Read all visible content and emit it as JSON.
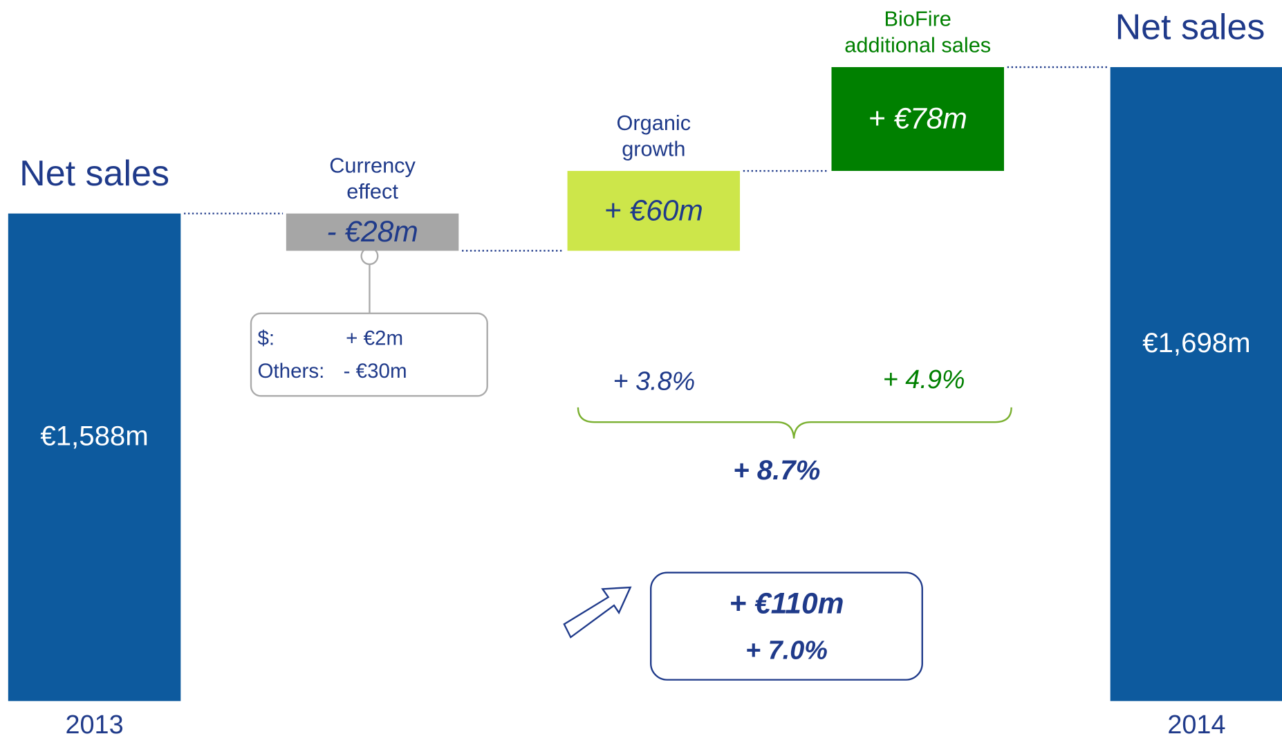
{
  "chart_data": {
    "type": "waterfall",
    "categories": [
      [
        "2013"
      ],
      [
        "Currency",
        "effect"
      ],
      [
        "Organic",
        "growth"
      ],
      [
        "BioFire",
        "additional sales"
      ],
      [
        "2014"
      ]
    ],
    "total_label": [
      "Net sales",
      null,
      null,
      null,
      "Net sales"
    ],
    "values": [
      1588,
      -28,
      60,
      78,
      1698
    ],
    "is_total": [
      true,
      false,
      false,
      false,
      true
    ],
    "value_labels": [
      "€1,588m",
      "- €28m",
      "+ €60m",
      "+ €78m",
      "€1,698m"
    ],
    "colors": [
      "#0d5a9e",
      "#a6a6a6",
      "#cde64a",
      "#008000",
      "#0d5a9e"
    ],
    "label_colors": [
      "#ffffff",
      "#1f3a8a",
      "#1f3a8a",
      "#ffffff",
      "#ffffff"
    ],
    "category_label_colors": [
      "#1f3a8a",
      "#1f3a8a",
      "#1f3a8a",
      "#008000",
      "#1f3a8a"
    ],
    "breakdown": [
      [
        "$:",
        "+ €2m"
      ],
      [
        "Others:",
        "- €30m"
      ]
    ],
    "organic_pct": "+ 3.8%",
    "biofire_pct": "+ 4.9%",
    "combined_pct": "+ 8.7%",
    "total_change": "+ €110m",
    "total_change_pct": "+ 7.0%"
  }
}
